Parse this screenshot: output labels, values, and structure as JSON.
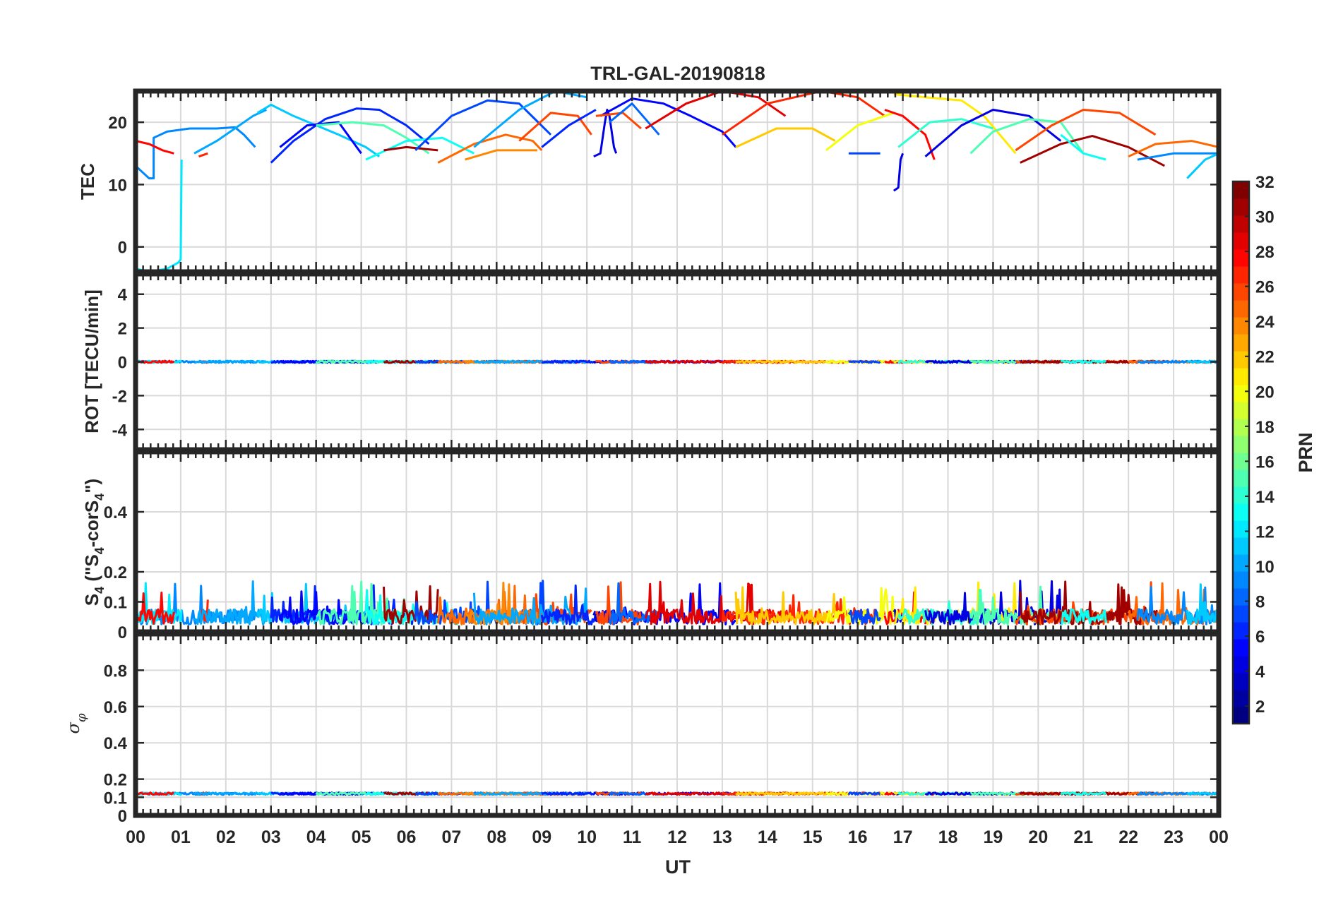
{
  "figure": {
    "title": "TRL-GAL-20190818",
    "xlabel": "UT",
    "x_tick_labels": [
      "00",
      "01",
      "02",
      "03",
      "04",
      "05",
      "06",
      "07",
      "08",
      "09",
      "10",
      "11",
      "12",
      "13",
      "14",
      "15",
      "16",
      "17",
      "18",
      "19",
      "20",
      "21",
      "22",
      "23",
      "00"
    ]
  },
  "colorbar": {
    "label": "PRN",
    "range": [
      1,
      32
    ],
    "ticks": [
      2,
      4,
      6,
      8,
      10,
      12,
      14,
      16,
      18,
      20,
      22,
      24,
      26,
      28,
      30,
      32
    ],
    "colormap": "jet"
  },
  "chart_data": [
    {
      "type": "line",
      "panel": "TEC",
      "ylabel": "TEC",
      "xlim": [
        0,
        24
      ],
      "ylim": [
        -4,
        25
      ],
      "yticks": [
        0,
        10,
        20
      ],
      "grid": true,
      "x_unit": "hours UT",
      "series": [
        {
          "prn": 9,
          "x": [
            0,
            0.15,
            0.3,
            0.4,
            0.4,
            0.7,
            1.2,
            1.8,
            2.2,
            2.4,
            2.65
          ],
          "y": [
            13,
            12,
            11,
            11,
            17.5,
            18.5,
            19,
            19,
            19.2,
            18,
            16
          ]
        },
        {
          "prn": 12,
          "x": [
            0,
            0.3,
            0.7,
            0.95,
            1.0,
            1.02
          ],
          "y": [
            -3.5,
            -4,
            -3.5,
            -2.5,
            -2,
            14
          ]
        },
        {
          "prn": 28,
          "x": [
            0,
            0.3,
            0.6,
            0.85
          ],
          "y": [
            17,
            16.5,
            15.5,
            15
          ]
        },
        {
          "prn": 27,
          "x": [
            1.4,
            1.6
          ],
          "y": [
            14.5,
            15
          ]
        },
        {
          "prn": 10,
          "x": [
            1.3,
            1.8,
            2.3,
            2.6,
            2.9
          ],
          "y": [
            15,
            17,
            19.5,
            21,
            22
          ]
        },
        {
          "prn": 11,
          "x": [
            2.7,
            3.0,
            3.5,
            4.5,
            5.1,
            5.4
          ],
          "y": [
            21.5,
            22.8,
            21,
            18,
            16,
            14.5
          ]
        },
        {
          "prn": 6,
          "x": [
            3.0,
            3.5,
            4.2,
            4.9,
            5.4,
            6.0,
            6.5
          ],
          "y": [
            13.5,
            17,
            20.5,
            22.2,
            22,
            19.5,
            16.5
          ]
        },
        {
          "prn": 5,
          "x": [
            3.2,
            3.8,
            4.5,
            5.0
          ],
          "y": [
            16,
            19.5,
            20,
            15
          ]
        },
        {
          "prn": 15,
          "x": [
            4.0,
            4.8,
            5.5,
            6.0,
            6.5
          ],
          "y": [
            19.5,
            20,
            19.5,
            17.5,
            15
          ]
        },
        {
          "prn": 13,
          "x": [
            5.1,
            6.0,
            6.8,
            7.5
          ],
          "y": [
            14,
            17,
            17.5,
            15
          ]
        },
        {
          "prn": 31,
          "x": [
            5.5,
            6.0,
            6.7
          ],
          "y": [
            15.5,
            16,
            15.5
          ]
        },
        {
          "prn": 7,
          "x": [
            6.2,
            7.0,
            7.8,
            8.5,
            9.2
          ],
          "y": [
            15.5,
            21,
            23.5,
            23,
            18
          ]
        },
        {
          "prn": 25,
          "x": [
            6.7,
            7.5,
            8.2,
            8.8,
            9.0
          ],
          "y": [
            13.5,
            16.5,
            18,
            17,
            15.5
          ]
        },
        {
          "prn": 24,
          "x": [
            7.3,
            8.0,
            8.9
          ],
          "y": [
            14,
            15.5,
            15.5
          ]
        },
        {
          "prn": 26,
          "x": [
            8.5,
            9.2,
            9.8,
            10.1
          ],
          "y": [
            17,
            21.5,
            21,
            18
          ]
        },
        {
          "prn": 10,
          "x": [
            7.5,
            8.5,
            9.3,
            10.0
          ],
          "y": [
            16,
            22,
            25,
            24
          ]
        },
        {
          "prn": 6,
          "x": [
            9.0,
            9.6,
            10.2
          ],
          "y": [
            16,
            19.5,
            22
          ]
        },
        {
          "prn": 4,
          "x": [
            10.15,
            10.3,
            10.4,
            10.45,
            10.5,
            10.6,
            10.65
          ],
          "y": [
            14.5,
            15,
            20,
            22,
            21,
            16,
            15
          ]
        },
        {
          "prn": 5,
          "x": [
            10.3,
            11.0,
            11.7,
            12.3,
            13.0,
            13.3
          ],
          "y": [
            21,
            23.8,
            23,
            21,
            18.5,
            16
          ]
        },
        {
          "prn": 26,
          "x": [
            10.2,
            10.8,
            11.2
          ],
          "y": [
            21,
            21.5,
            19
          ]
        },
        {
          "prn": 8,
          "x": [
            10.5,
            11.0,
            11.6
          ],
          "y": [
            20,
            23,
            18
          ]
        },
        {
          "prn": 29,
          "x": [
            11.3,
            12.2,
            13.0,
            13.8,
            14.4
          ],
          "y": [
            19,
            23,
            25,
            24,
            21
          ]
        },
        {
          "prn": 27,
          "x": [
            13.0,
            14.0,
            15.2,
            16.0,
            16.6
          ],
          "y": [
            18,
            23,
            25,
            24,
            21
          ]
        },
        {
          "prn": 22,
          "x": [
            13.3,
            14.2,
            15.0,
            15.5
          ],
          "y": [
            16,
            19,
            19,
            17
          ]
        },
        {
          "prn": 20,
          "x": [
            15.3,
            16.0,
            16.8
          ],
          "y": [
            15.5,
            19.5,
            21.5
          ]
        },
        {
          "prn": 7,
          "x": [
            15.8,
            16.5
          ],
          "y": [
            15,
            15
          ]
        },
        {
          "prn": 28,
          "x": [
            16.6,
            17.0,
            17.5,
            17.7
          ],
          "y": [
            22,
            21,
            18,
            14
          ]
        },
        {
          "prn": 4,
          "x": [
            16.8,
            16.9,
            16.95,
            17.0
          ],
          "y": [
            9,
            9.5,
            14,
            15
          ]
        },
        {
          "prn": 21,
          "x": [
            16.8,
            17.5,
            18.3,
            18.8,
            19.5
          ],
          "y": [
            24.5,
            24,
            23.5,
            21,
            15
          ]
        },
        {
          "prn": 14,
          "x": [
            16.9,
            17.6,
            18.3,
            19.0
          ],
          "y": [
            16,
            20,
            20.5,
            19
          ]
        },
        {
          "prn": 4,
          "x": [
            17.5,
            18.3,
            19.0,
            19.8,
            20.5
          ],
          "y": [
            14.5,
            19.5,
            22,
            21,
            17
          ]
        },
        {
          "prn": 15,
          "x": [
            18.5,
            19.0,
            19.8,
            20.5,
            21.0
          ],
          "y": [
            15,
            18.5,
            20.5,
            20,
            15
          ]
        },
        {
          "prn": 26,
          "x": [
            19.5,
            20.3,
            21.0,
            21.8,
            22.6
          ],
          "y": [
            15.5,
            19.5,
            22,
            21.5,
            18
          ]
        },
        {
          "prn": 31,
          "x": [
            19.6,
            20.5,
            21.2,
            22.0,
            22.8
          ],
          "y": [
            13.5,
            16.5,
            17.8,
            16,
            13
          ]
        },
        {
          "prn": 13,
          "x": [
            20.5,
            21.0,
            21.5
          ],
          "y": [
            18,
            15,
            14
          ]
        },
        {
          "prn": 25,
          "x": [
            22.0,
            22.6,
            23.4,
            24.0
          ],
          "y": [
            14.5,
            16.5,
            17,
            16
          ]
        },
        {
          "prn": 9,
          "x": [
            22.2,
            23.0,
            24.0
          ],
          "y": [
            14,
            15,
            15
          ]
        },
        {
          "prn": 11,
          "x": [
            23.3,
            23.7,
            24.0
          ],
          "y": [
            11,
            14,
            15
          ]
        }
      ]
    },
    {
      "type": "line",
      "panel": "ROT",
      "ylabel": "ROT [TECU/min]",
      "xlim": [
        0,
        24
      ],
      "ylim": [
        -5.2,
        5.2
      ],
      "yticks": [
        -4,
        -2,
        0,
        2,
        4
      ],
      "grid": true,
      "typical_value": 0.0,
      "typical_amplitude": 0.12
    },
    {
      "type": "line",
      "panel": "S4",
      "ylabel": "S4 (\"S4-corS4\")",
      "xlim": [
        0,
        24
      ],
      "ylim": [
        0,
        0.6
      ],
      "yticks": [
        0,
        0.1,
        0.2,
        0.4
      ],
      "grid": true,
      "typical_value": 0.05,
      "peak_value": 0.17
    },
    {
      "type": "line",
      "panel": "sigma-phi",
      "ylabel": "σφ",
      "xlim": [
        0,
        24
      ],
      "ylim": [
        0,
        1
      ],
      "yticks": [
        0,
        0.1,
        0.2,
        0.4,
        0.6,
        0.8
      ],
      "grid": true,
      "typical_value": 0.12
    }
  ]
}
